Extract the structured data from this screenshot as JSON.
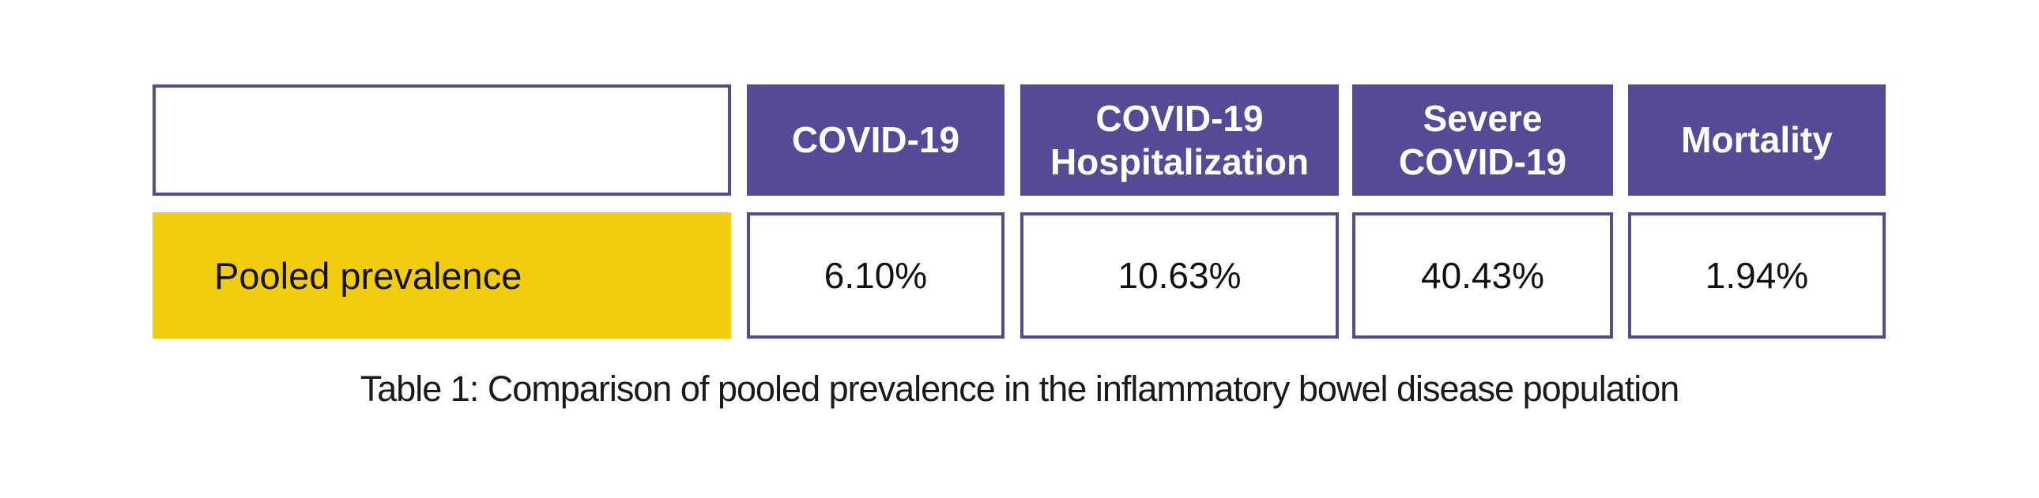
{
  "figure": {
    "caption": "Table 1: Comparison of pooled prevalence in the inflammatory bowel disease population"
  },
  "table": {
    "row_label": "Pooled prevalence",
    "columns": [
      {
        "label": "COVID-19",
        "value": "6.10%"
      },
      {
        "label": "COVID-19 Hospitalization",
        "value": "10.63%"
      },
      {
        "label": "Severe COVID-19",
        "value": "40.43%"
      },
      {
        "label": "Mortality",
        "value": "1.94%"
      }
    ]
  },
  "theme": {
    "header_purple": "#544A96",
    "border_purple": "#544A96",
    "row_label_yellow": "#F2CD0D",
    "text_dark": "#111111",
    "header_text": "#FFFFFF"
  },
  "chart_data": {
    "type": "table",
    "title": "Table 1: Comparison of pooled prevalence in the inflammatory bowel disease population",
    "columns": [
      "COVID-19",
      "COVID-19 Hospitalization",
      "Severe COVID-19",
      "Mortality"
    ],
    "rows": [
      {
        "label": "Pooled prevalence",
        "values_percent": [
          6.1,
          10.63,
          40.43,
          1.94
        ],
        "values_text": [
          "6.10%",
          "10.63%",
          "40.43%",
          "1.94%"
        ]
      }
    ],
    "layout": "single data row; first header cell empty; purple column headers; yellow row-label cell; caption below table"
  }
}
